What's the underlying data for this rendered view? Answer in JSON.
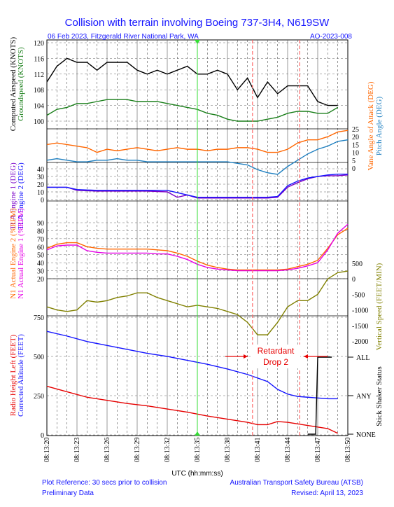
{
  "header": {
    "title": "Collision with terrain involving Boeing 737-3H4, N619SW",
    "date_location": "06 Feb 2023, Fitzgerald River National Park, WA",
    "report_id": "AO-2023-008"
  },
  "footer": {
    "plot_reference": "Plot Reference: 30 secs prior to collision",
    "data_status": "Preliminary Data",
    "organisation": "Australian Transport Safety Bureau (ATSB)",
    "revised": "Revised: April 13, 2023"
  },
  "colors": {
    "black": "#000000",
    "green": "#1a7f1a",
    "orange": "#ff6600",
    "teal": "#1e7fc0",
    "blue": "#1414ff",
    "purple": "#7a00c8",
    "magenta": "#e600e6",
    "olive": "#808000",
    "red": "#e60000",
    "marker_green": "#33dd33",
    "marker_red": "#ff6a6a"
  },
  "chart_data": {
    "type": "line",
    "xlabel": "UTC (hh:mm:ss)",
    "x_ticks": [
      "08:13:20",
      "08:13:23",
      "08:13:26",
      "08:13:29",
      "08:13:32",
      "08:13:35",
      "08:13:38",
      "08:13:41",
      "08:13:44",
      "08:13:47",
      "08:13:50"
    ],
    "x_range_s": [
      0,
      30
    ],
    "markers": {
      "reference_line_x": "08:13:35",
      "retardant_lines_x": [
        "08:13:40.5",
        "08:13:45.2"
      ],
      "annotation": [
        "Retardant",
        "Drop 2"
      ]
    },
    "panels": [
      {
        "id": "airspeed",
        "left_ticks": [
          "100",
          "104",
          "108",
          "112",
          "116",
          "120"
        ],
        "left_range": [
          100,
          120
        ],
        "left_labels": [
          {
            "text": "Computed Airspeed (KNOTS)",
            "color": "black"
          },
          {
            "text": "Groundspeed (KNOTS)",
            "color": "green"
          }
        ],
        "series": [
          {
            "name": "Computed Airspeed (KNOTS)",
            "color": "black",
            "axis": "left",
            "t": [
              0,
              1,
              2,
              3,
              4,
              5,
              6,
              7,
              8,
              9,
              10,
              11,
              12,
              13,
              14,
              15,
              16,
              17,
              18,
              19,
              20,
              21,
              22,
              23,
              24,
              25,
              26,
              27,
              28,
              29
            ],
            "v": [
              110,
              114,
              116,
              115,
              115,
              113,
              115,
              115,
              115,
              113,
              112,
              113,
              112,
              113,
              114,
              112,
              112,
              113,
              112,
              108,
              111,
              106,
              110,
              107,
              109,
              109,
              109,
              105,
              104,
              104
            ]
          },
          {
            "name": "Groundspeed (KNOTS)",
            "color": "green",
            "axis": "left",
            "t": [
              0,
              1,
              2,
              3,
              4,
              5,
              6,
              7,
              8,
              9,
              10,
              11,
              12,
              13,
              14,
              15,
              16,
              17,
              18,
              19,
              20,
              21,
              22,
              23,
              24,
              25,
              26,
              27,
              28,
              29
            ],
            "v": [
              101.5,
              103,
              103.5,
              104.5,
              104.5,
              105,
              105.5,
              105.5,
              105.5,
              105,
              105,
              105,
              104.5,
              104,
              103.5,
              103,
              102,
              101.5,
              100.5,
              100,
              100,
              100,
              100.5,
              101,
              102,
              102.5,
              102.5,
              102,
              102,
              103.5
            ]
          }
        ]
      },
      {
        "id": "aoa_pitch",
        "left_ticks": [],
        "right_ticks": [
          "0",
          "5",
          "10",
          "15",
          "20",
          "25"
        ],
        "right_range": [
          0,
          25
        ],
        "right_labels": [
          {
            "text": "Vane Angle of Attack (DEG)",
            "color": "orange"
          },
          {
            "text": "Pitch Angle (DEG)",
            "color": "teal"
          }
        ],
        "series": [
          {
            "name": "Vane Angle of Attack (DEG)",
            "color": "orange",
            "axis": "right",
            "t": [
              0,
              1,
              2,
              3,
              4,
              5,
              6,
              7,
              8,
              9,
              10,
              11,
              12,
              13,
              14,
              15,
              16,
              17,
              18,
              19,
              20,
              21,
              22,
              23,
              24,
              25,
              26,
              27,
              28,
              29,
              30
            ],
            "v": [
              15,
              16,
              15,
              14,
              13,
              10,
              12,
              11,
              12,
              13,
              12,
              11,
              12,
              13,
              12,
              12,
              11,
              12,
              12,
              13,
              13,
              12,
              10,
              10,
              12,
              16,
              18,
              18,
              20,
              23,
              24
            ]
          },
          {
            "name": "Pitch Angle (DEG)",
            "color": "teal",
            "axis": "right",
            "t": [
              0,
              1,
              2,
              3,
              4,
              5,
              6,
              7,
              8,
              9,
              10,
              11,
              12,
              13,
              14,
              15,
              16,
              17,
              18,
              19,
              20,
              21,
              22,
              23,
              24,
              25,
              26,
              27,
              28,
              29,
              30
            ],
            "v": [
              5,
              6,
              5,
              4,
              4,
              5,
              5,
              6,
              5,
              5,
              4,
              4,
              4,
              4,
              4,
              4,
              4,
              4,
              4,
              3,
              2,
              -1,
              -3,
              -4,
              1,
              5,
              9,
              12,
              14,
              17,
              18
            ]
          }
        ]
      },
      {
        "id": "tla",
        "left_ticks": [
          "0",
          "10",
          "20",
          "30",
          "40"
        ],
        "left_range": [
          0,
          40
        ],
        "left_labels": [
          {
            "text": "TLA Engine 1 (DEG)",
            "color": "purple"
          },
          {
            "text": "TLA Engine 2 (DEG)",
            "color": "blue"
          }
        ],
        "series": [
          {
            "name": "TLA Engine 1 (DEG)",
            "color": "purple",
            "axis": "left",
            "t": [
              0,
              2,
              3,
              5,
              10,
              12,
              13,
              14,
              15,
              16,
              17,
              18,
              19,
              20,
              21,
              22,
              23,
              24,
              25,
              26,
              27,
              28,
              29,
              30
            ],
            "v": [
              16,
              16,
              12,
              11,
              11,
              10,
              3,
              6,
              2,
              2,
              2,
              2,
              2,
              2,
              2,
              2,
              3,
              16,
              22,
              27,
              30,
              31,
              31,
              32
            ]
          },
          {
            "name": "TLA Engine 2 (DEG)",
            "color": "blue",
            "axis": "left",
            "t": [
              0,
              2,
              3,
              5,
              12,
              14,
              15,
              16,
              17,
              18,
              19,
              20,
              21,
              22,
              23,
              24,
              25,
              26,
              27,
              28,
              29,
              30
            ],
            "v": [
              16,
              16,
              13,
              12,
              12,
              6,
              3,
              3,
              3,
              3,
              3,
              3,
              3,
              3,
              4,
              18,
              24,
              28,
              30,
              32,
              33,
              33
            ]
          }
        ]
      },
      {
        "id": "n1",
        "left_ticks": [
          "20",
          "30",
          "40",
          "50",
          "60",
          "70",
          "80",
          "90"
        ],
        "left_range": [
          20,
          90
        ],
        "left_labels": [
          {
            "text": "N1 Actual Engine 2 (%RPM)",
            "color": "orange"
          },
          {
            "text": "N1 Actual Engine 1 (%RPM)",
            "color": "magenta"
          }
        ],
        "series": [
          {
            "name": "N1 Actual Engine 2 (%RPM)",
            "color": "orange",
            "axis": "left",
            "t": [
              0,
              1,
              2,
              3,
              4,
              5,
              6,
              7,
              8,
              9,
              10,
              11,
              12,
              13,
              14,
              15,
              16,
              17,
              18,
              19,
              20,
              21,
              22,
              23,
              24,
              25,
              26,
              27,
              28,
              29,
              30
            ],
            "v": [
              58,
              63,
              65,
              65,
              60,
              58,
              57,
              57,
              57,
              57,
              57,
              56,
              55,
              52,
              48,
              42,
              37,
              34,
              32,
              31,
              31,
              31,
              31,
              31,
              32,
              35,
              38,
              43,
              58,
              75,
              83
            ]
          },
          {
            "name": "N1 Actual Engine 1 (%RPM)",
            "color": "magenta",
            "axis": "left",
            "t": [
              0,
              1,
              2,
              3,
              4,
              5,
              6,
              7,
              8,
              9,
              10,
              11,
              12,
              13,
              14,
              15,
              16,
              17,
              18,
              19,
              20,
              21,
              22,
              23,
              24,
              25,
              26,
              27,
              28,
              29,
              30
            ],
            "v": [
              56,
              61,
              62,
              62,
              55,
              53,
              52,
              52,
              52,
              52,
              52,
              51,
              51,
              48,
              44,
              38,
              34,
              32,
              31,
              30,
              30,
              30,
              30,
              30,
              31,
              33,
              36,
              40,
              56,
              77,
              88
            ]
          }
        ]
      },
      {
        "id": "vs",
        "right_ticks": [
          "-2000",
          "-1500",
          "-1000",
          "-500",
          "0",
          "500"
        ],
        "right_range": [
          -2000,
          500
        ],
        "right_labels": [
          {
            "text": "Vertical Speed (FEET/MIN)",
            "color": "olive"
          }
        ],
        "series": [
          {
            "name": "Vertical Speed (FEET/MIN)",
            "color": "olive",
            "axis": "right",
            "t": [
              0,
              1,
              2,
              3,
              4,
              5,
              6,
              7,
              8,
              9,
              10,
              11,
              12,
              13,
              14,
              15,
              16,
              17,
              18,
              19,
              20,
              21,
              22,
              23,
              24,
              25,
              26,
              27,
              28,
              29,
              30
            ],
            "v": [
              -900,
              -1000,
              -1050,
              -1000,
              -700,
              -750,
              -700,
              -600,
              -550,
              -450,
              -450,
              -600,
              -700,
              -800,
              -900,
              -850,
              -900,
              -950,
              -1050,
              -1150,
              -1400,
              -1800,
              -1800,
              -1400,
              -900,
              -700,
              -700,
              -500,
              0,
              200,
              250
            ]
          }
        ]
      },
      {
        "id": "altitude",
        "left_ticks": [
          "0",
          "250",
          "500",
          "750"
        ],
        "left_range": [
          0,
          750
        ],
        "right_ticks": [
          "NONE",
          "ANY",
          "ALL"
        ],
        "left_labels": [
          {
            "text": "Radio Height Left (FEET)",
            "color": "red"
          },
          {
            "text": "Corrected Altitude (FEET)",
            "color": "blue"
          }
        ],
        "right_labels": [
          {
            "text": "Stick Shaker Status",
            "color": "black"
          }
        ],
        "series": [
          {
            "name": "Corrected Altitude (FEET)",
            "color": "blue",
            "axis": "left",
            "t": [
              0,
              2,
              4,
              6,
              8,
              10,
              12,
              14,
              16,
              18,
              20,
              22,
              23,
              24,
              25,
              26,
              27,
              28,
              29
            ],
            "v": [
              660,
              630,
              595,
              570,
              545,
              520,
              500,
              475,
              450,
              420,
              385,
              340,
              290,
              260,
              245,
              240,
              235,
              230,
              230
            ]
          },
          {
            "name": "Radio Height Left (FEET)",
            "color": "red",
            "axis": "left",
            "t": [
              0,
              2,
              4,
              6,
              8,
              10,
              12,
              14,
              16,
              18,
              20,
              21,
              22,
              23,
              24,
              25,
              26,
              27,
              28,
              29
            ],
            "v": [
              310,
              275,
              240,
              220,
              200,
              185,
              165,
              145,
              120,
              100,
              80,
              65,
              65,
              85,
              80,
              70,
              60,
              50,
              40,
              10
            ]
          },
          {
            "name": "Stick Shaker Status",
            "color": "black",
            "axis": "right_status",
            "t": [
              26,
              26.8,
              27,
              28.4
            ],
            "v": [
              "NONE",
              "NONE",
              "ALL",
              "ALL"
            ]
          }
        ]
      }
    ]
  }
}
